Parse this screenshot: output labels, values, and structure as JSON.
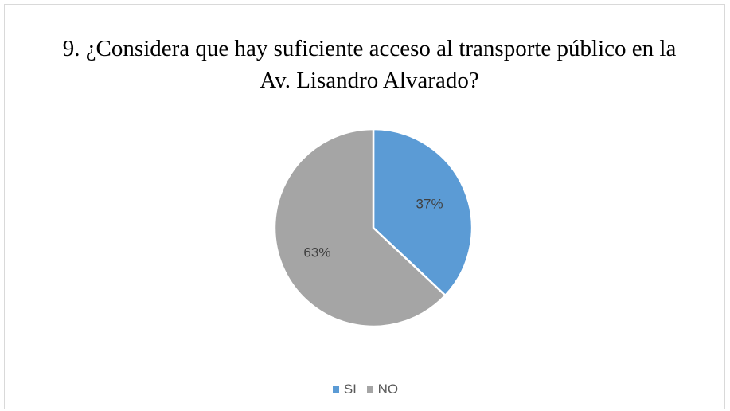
{
  "chart_data": {
    "type": "pie",
    "title": "9. ¿Considera que hay suficiente acceso al transporte público en la Av. Lisandro Alvarado?",
    "categories": [
      "SI",
      "NO"
    ],
    "values": [
      37,
      63
    ],
    "labels": [
      "37%",
      "63%"
    ],
    "colors": [
      "#5b9bd5",
      "#a5a5a5"
    ],
    "legend_position": "bottom"
  }
}
